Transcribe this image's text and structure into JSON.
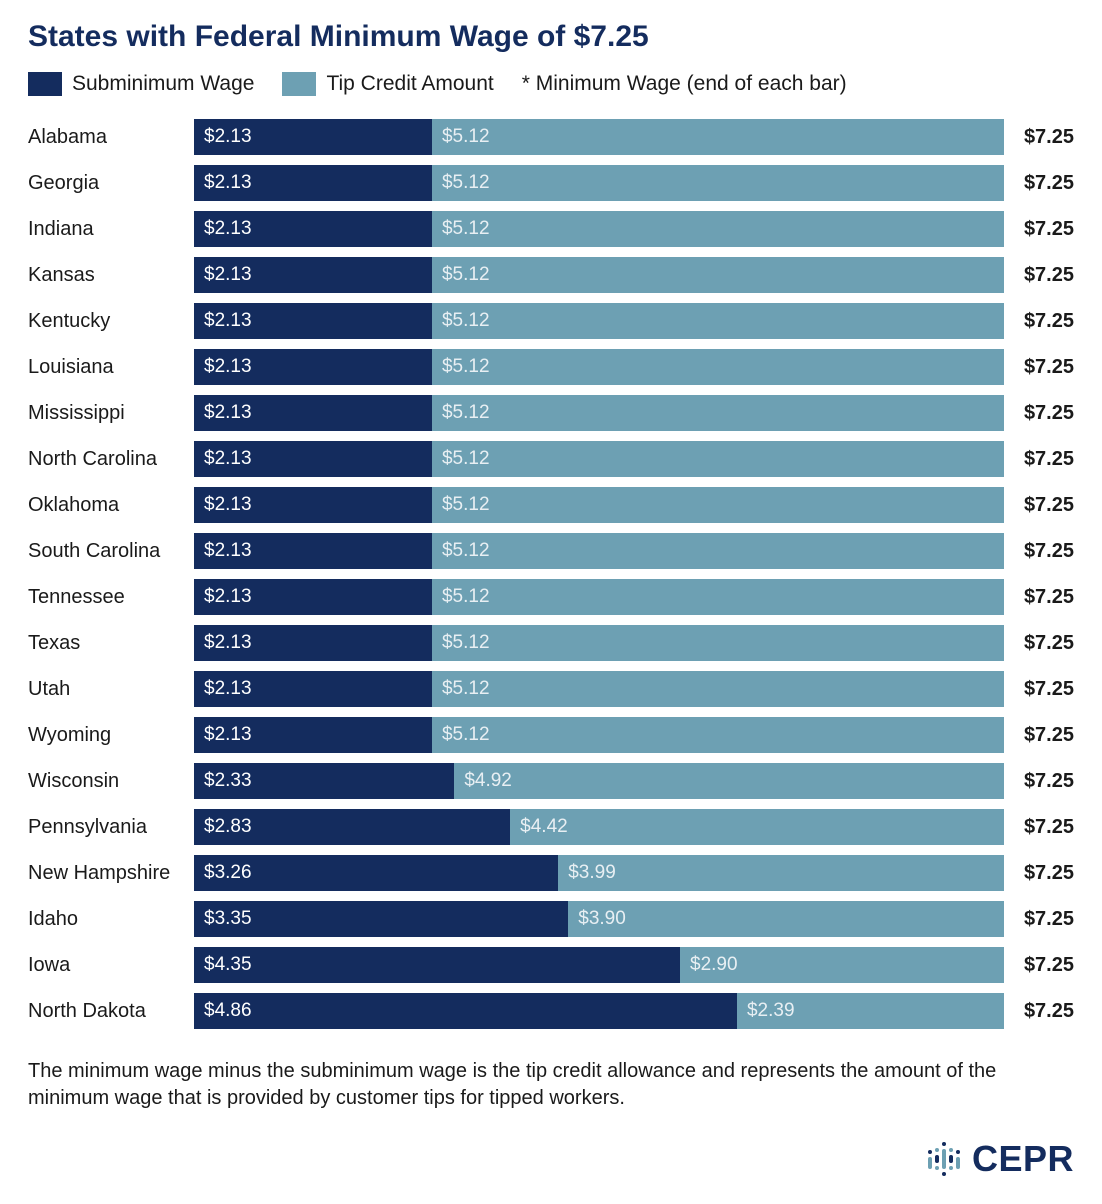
{
  "title": "States with Federal Minimum Wage of $7.25",
  "legend": {
    "sub_label": "Subminimum Wage",
    "tip_label": "Tip Credit Amount",
    "note": "* Minimum Wage (end of each bar)"
  },
  "colors": {
    "subminimum": "#142c5e",
    "tipcredit": "#6da0b3",
    "text_dark": "#1a1a1a",
    "bar_text": "#ffffff",
    "bar_text_light": "#e8eff3",
    "background": "#ffffff"
  },
  "chart": {
    "type": "stacked-bar-horizontal",
    "x_max": 7.25,
    "bar_text_fontsize": 19,
    "label_fontsize": 20,
    "rows": [
      {
        "state": "Alabama",
        "sub": 2.13,
        "tip": 5.12,
        "total": 7.25
      },
      {
        "state": "Georgia",
        "sub": 2.13,
        "tip": 5.12,
        "total": 7.25
      },
      {
        "state": "Indiana",
        "sub": 2.13,
        "tip": 5.12,
        "total": 7.25
      },
      {
        "state": "Kansas",
        "sub": 2.13,
        "tip": 5.12,
        "total": 7.25
      },
      {
        "state": "Kentucky",
        "sub": 2.13,
        "tip": 5.12,
        "total": 7.25
      },
      {
        "state": "Louisiana",
        "sub": 2.13,
        "tip": 5.12,
        "total": 7.25
      },
      {
        "state": "Mississippi",
        "sub": 2.13,
        "tip": 5.12,
        "total": 7.25
      },
      {
        "state": "North Carolina",
        "sub": 2.13,
        "tip": 5.12,
        "total": 7.25
      },
      {
        "state": "Oklahoma",
        "sub": 2.13,
        "tip": 5.12,
        "total": 7.25
      },
      {
        "state": "South Carolina",
        "sub": 2.13,
        "tip": 5.12,
        "total": 7.25
      },
      {
        "state": "Tennessee",
        "sub": 2.13,
        "tip": 5.12,
        "total": 7.25
      },
      {
        "state": "Texas",
        "sub": 2.13,
        "tip": 5.12,
        "total": 7.25
      },
      {
        "state": "Utah",
        "sub": 2.13,
        "tip": 5.12,
        "total": 7.25
      },
      {
        "state": "Wyoming",
        "sub": 2.13,
        "tip": 5.12,
        "total": 7.25
      },
      {
        "state": "Wisconsin",
        "sub": 2.33,
        "tip": 4.92,
        "total": 7.25
      },
      {
        "state": "Pennsylvania",
        "sub": 2.83,
        "tip": 4.42,
        "total": 7.25
      },
      {
        "state": "New Hampshire",
        "sub": 3.26,
        "tip": 3.99,
        "total": 7.25
      },
      {
        "state": "Idaho",
        "sub": 3.35,
        "tip": 3.9,
        "total": 7.25
      },
      {
        "state": "Iowa",
        "sub": 4.35,
        "tip": 2.9,
        "total": 7.25
      },
      {
        "state": "North Dakota",
        "sub": 4.86,
        "tip": 2.39,
        "total": 7.25
      }
    ]
  },
  "footnote": "The minimum wage minus the subminimum wage is the tip credit allowance and represents the amount of the minimum wage that is provided by customer tips for tipped workers.",
  "logo_text": "CEPR",
  "logo": {
    "dot_color_dark": "#142c5e",
    "dot_color_light": "#6da0b3",
    "columns": [
      [
        4,
        12
      ],
      [
        4,
        8,
        4
      ],
      [
        4,
        20,
        4
      ],
      [
        4,
        8,
        4
      ],
      [
        4,
        12
      ]
    ]
  }
}
